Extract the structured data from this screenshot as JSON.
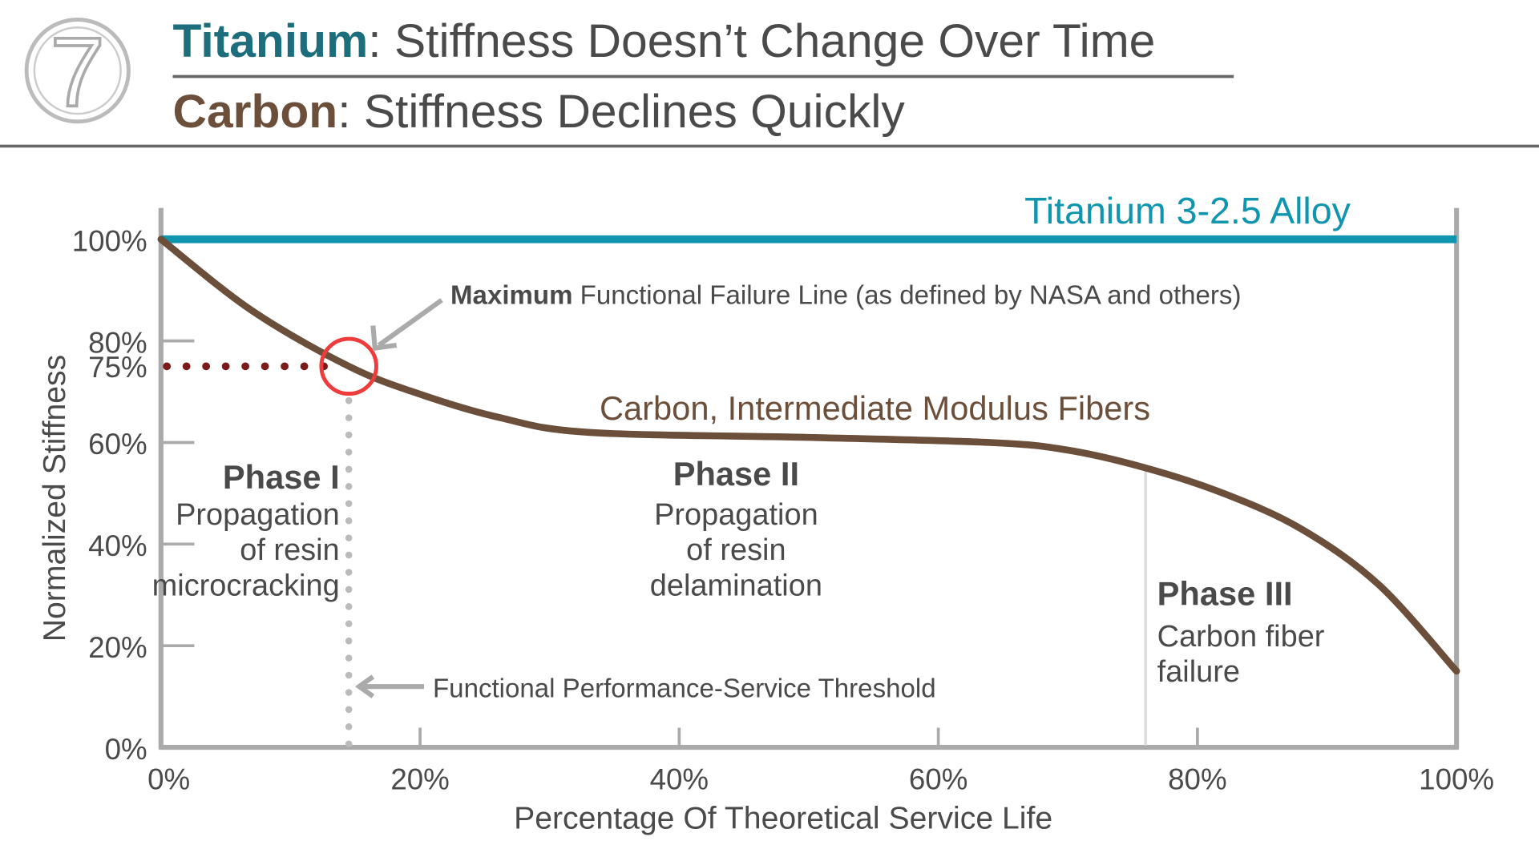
{
  "header": {
    "logo_text": "7",
    "line1_bold": "Titanium",
    "line1_rest": ":  Stiffness Doesn’t Change Over Time",
    "line2_bold": "Carbon",
    "line2_rest": ":  Stiffness Declines Quickly",
    "colors": {
      "titanium": "#1c6e7d",
      "carbon": "#6b4f3a"
    }
  },
  "chart_data": {
    "type": "line",
    "xlabel": "Percentage Of Theoretical Service Life",
    "ylabel": "Normalized Stiffness",
    "xlim": [
      0,
      100
    ],
    "ylim": [
      0,
      100
    ],
    "x_ticks": [
      "0%",
      "20%",
      "40%",
      "60%",
      "80%",
      "100%"
    ],
    "y_ticks": [
      "0%",
      "20%",
      "40%",
      "60%",
      "80%",
      "100%"
    ],
    "y_tick_values": [
      0,
      20,
      40,
      60,
      80,
      100
    ],
    "x_tick_values": [
      0,
      20,
      40,
      60,
      80,
      100
    ],
    "series": [
      {
        "name": "Titanium 3-2.5 Alloy",
        "color": "#0f95ae",
        "x": [
          0,
          100
        ],
        "y": [
          100,
          100
        ]
      },
      {
        "name": "Carbon, Intermediate Modulus Fibers",
        "color": "#6b4f3a",
        "x": [
          0,
          7,
          14.5,
          20,
          26,
          33,
          50,
          64,
          70,
          76,
          82,
          88,
          94,
          100
        ],
        "y": [
          100,
          86,
          75,
          69.5,
          65,
          62,
          61,
          60,
          58.5,
          55,
          50,
          43,
          32,
          15
        ]
      }
    ],
    "marker_label": "75%",
    "marker_y": 75,
    "marker_x": 14.5,
    "marker_color": "#7a1a1a",
    "circle_color": "#ee3b3b",
    "phase3_boundary_x": 76,
    "annotations": {
      "failure_line_bold": "Maximum",
      "failure_line_rest": " Functional Failure Line (as defined by NASA and others)",
      "threshold": "Functional Performance-Service Threshold"
    },
    "phases": [
      {
        "title": "Phase I",
        "lines": [
          "Propagation",
          "of resin",
          "microcracking"
        ]
      },
      {
        "title": "Phase II",
        "lines": [
          "Propagation",
          "of resin",
          "delamination"
        ]
      },
      {
        "title": "Phase III",
        "lines": [
          "Carbon fiber",
          "failure"
        ]
      }
    ]
  }
}
